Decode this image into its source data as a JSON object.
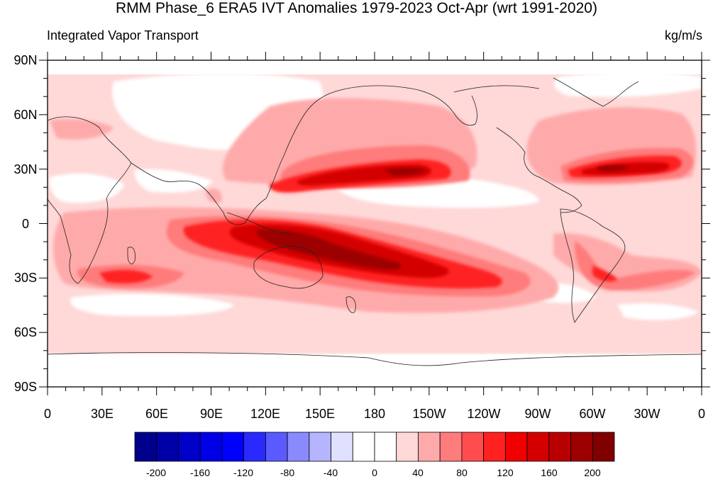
{
  "title": "RMM Phase_6 ERA5 IVT Anomalies 1979-2023 Oct-Apr (wrt 1991-2020)",
  "left_subtitle": "Integrated Vapor Transport",
  "right_subtitle": "kg/m/s",
  "lat_labels": [
    "90N",
    "60N",
    "30N",
    "0",
    "30S",
    "60S",
    "90S"
  ],
  "lon_labels": [
    "0",
    "30E",
    "60E",
    "90E",
    "120E",
    "150E",
    "180",
    "150W",
    "120W",
    "90W",
    "60W",
    "30W",
    "0"
  ],
  "colorbar": {
    "colors": [
      "#00008b",
      "#0000a8",
      "#0000c8",
      "#0000e6",
      "#0000ff",
      "#2a2aff",
      "#5a5aff",
      "#8a8aff",
      "#b4b4ff",
      "#e0e0ff",
      "#ffffff",
      "#ffffff",
      "#ffd8d8",
      "#ffaaaa",
      "#ff7c7c",
      "#ff4d4d",
      "#ff2020",
      "#f00000",
      "#d40000",
      "#b80000",
      "#9c0000",
      "#800000"
    ],
    "labels": [
      "-200",
      "-160",
      "-120",
      "-80",
      "-40",
      "0",
      "40",
      "80",
      "120",
      "160",
      "200"
    ]
  }
}
